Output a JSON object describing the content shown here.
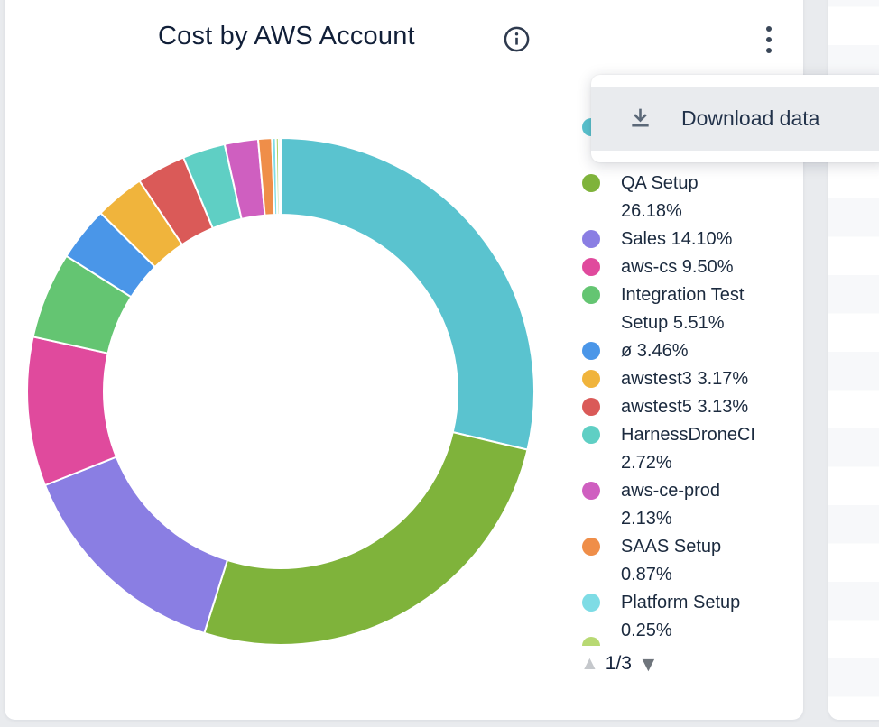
{
  "colors": {
    "page_bg": "#e9ebee",
    "card_bg": "#ffffff",
    "text_primary": "#1b2a3e",
    "title_color": "#111f38",
    "menu_hover_bg": "#e9ebee",
    "icon_gray": "#5b6878",
    "pagination_up": "#c5c8cc",
    "pagination_down": "#6f757c"
  },
  "header": {
    "title": "Cost by AWS Account"
  },
  "menu": {
    "items": [
      {
        "icon": "download-icon",
        "label": "Download data"
      }
    ]
  },
  "icons": {
    "page_up": "▲",
    "page_down": "▼"
  },
  "legend": {
    "items": [
      {
        "color": "#5ac3cf",
        "lines": []
      },
      {
        "color": "#7fb33b",
        "lines": [
          "QA Setup",
          "26.18%"
        ]
      },
      {
        "color": "#8a7ee3",
        "lines": [
          "Sales 14.10%"
        ]
      },
      {
        "color": "#e04a9d",
        "lines": [
          "aws-cs 9.50%"
        ]
      },
      {
        "color": "#64c572",
        "lines": [
          "Integration Test",
          "Setup 5.51%"
        ]
      },
      {
        "color": "#4a96e8",
        "lines": [
          "ø 3.46%"
        ]
      },
      {
        "color": "#f0b43c",
        "lines": [
          "awstest3 3.17%"
        ]
      },
      {
        "color": "#da5a58",
        "lines": [
          "awstest5 3.13%"
        ]
      },
      {
        "color": "#5fcfc4",
        "lines": [
          "HarnessDroneCI",
          "2.72%"
        ]
      },
      {
        "color": "#cf5fc0",
        "lines": [
          "aws-ce-prod",
          "2.13%"
        ]
      },
      {
        "color": "#ef8e49",
        "lines": [
          "SAAS Setup",
          "0.87%"
        ]
      },
      {
        "color": "#7edce5",
        "lines": [
          "Platform Setup",
          "0.25%"
        ]
      }
    ],
    "partial_next_color": "#b8d973",
    "pagination": {
      "page_label": "1/3"
    }
  },
  "chart_data": {
    "type": "pie",
    "donut": true,
    "title": "Cost by AWS Account",
    "units": "percent",
    "direction": "clockwise",
    "start_angle_deg": 0,
    "legend_position": "right",
    "legend_pages_indicator": "1/3",
    "segments": [
      {
        "label": "",
        "value": 28.7,
        "color": "#5ac3cf"
      },
      {
        "label": "QA Setup",
        "value": 26.18,
        "color": "#7fb33b"
      },
      {
        "label": "Sales",
        "value": 14.1,
        "color": "#8a7ee3"
      },
      {
        "label": "aws-cs",
        "value": 9.5,
        "color": "#e04a9d"
      },
      {
        "label": "Integration Test Setup",
        "value": 5.51,
        "color": "#64c572"
      },
      {
        "label": "ø",
        "value": 3.46,
        "color": "#4a96e8"
      },
      {
        "label": "awstest3",
        "value": 3.17,
        "color": "#f0b43c"
      },
      {
        "label": "awstest5",
        "value": 3.13,
        "color": "#da5a58"
      },
      {
        "label": "HarnessDroneCI",
        "value": 2.72,
        "color": "#5fcfc4"
      },
      {
        "label": "aws-ce-prod",
        "value": 2.13,
        "color": "#cf5fc0"
      },
      {
        "label": "SAAS Setup",
        "value": 0.87,
        "color": "#ef8e49"
      },
      {
        "label": "Platform Setup",
        "value": 0.25,
        "color": "#7edce5"
      },
      {
        "label": "",
        "value": 0.18,
        "color": "#aad361"
      },
      {
        "label": "",
        "value": 0.12,
        "color": "#8adfe8"
      }
    ]
  }
}
